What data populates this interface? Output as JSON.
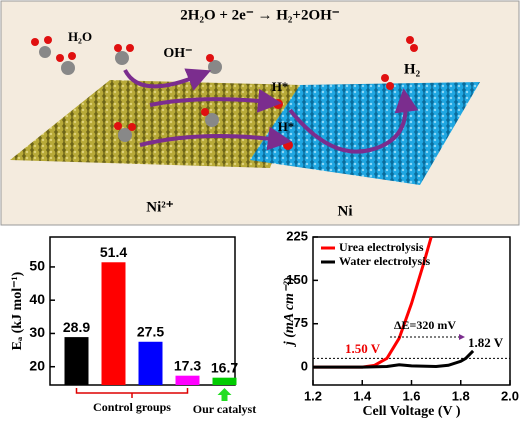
{
  "diagram": {
    "equation": "2H₂O + 2e⁻ → H₂+2OH⁻",
    "water": "H₂O",
    "hydroxide": "OH⁻",
    "h_star_1": "H*",
    "h_star_2": "H*",
    "hydrogen": "H₂",
    "ni2": "Ni²⁺",
    "ni": "Ni"
  },
  "chart_data": [
    {
      "type": "bar",
      "y_label": "Eₐ (kJ mol⁻¹)",
      "categories": [
        null,
        null,
        null,
        null,
        null
      ],
      "values": [
        28.9,
        51.4,
        27.5,
        17.3,
        16.7
      ],
      "colors": [
        "#000000",
        "#ff0000",
        "#0000ff",
        "#ff00ff",
        "#00cc00"
      ],
      "annotations": [
        "Control groups",
        "Our catalyst"
      ],
      "ylim": [
        14.5,
        59
      ],
      "yticks": [
        20,
        30,
        40,
        50
      ]
    },
    {
      "type": "line",
      "x_label": "Cell Voltage (V )",
      "y_label": "j (mA cm⁻²)",
      "series": [
        {
          "name": "Urea electrolysis",
          "color": "#ff0000",
          "x": [
            1.2,
            1.3,
            1.4,
            1.45,
            1.5,
            1.55,
            1.6,
            1.65,
            1.68
          ],
          "values": [
            0,
            0,
            0,
            3,
            15,
            50,
            110,
            180,
            225
          ]
        },
        {
          "name": "Water electrolysis",
          "color": "#000000",
          "x": [
            1.2,
            1.4,
            1.5,
            1.55,
            1.6,
            1.7,
            1.75,
            1.8,
            1.82,
            1.85
          ],
          "values": [
            0,
            0,
            1,
            4,
            2,
            1,
            3,
            10,
            15,
            28
          ]
        }
      ],
      "annotations": [
        "1.50 V",
        "1.82 V",
        "ΔE=320 mV"
      ],
      "hline": 15,
      "xlim": [
        1.2,
        2.0
      ],
      "xticks": [
        1.2,
        1.4,
        1.6,
        1.8,
        {
          "value": 2.0,
          "label": "2.0"
        }
      ],
      "ylim": [
        -31,
        225
      ],
      "yticks": [
        0,
        75,
        150,
        225
      ]
    }
  ]
}
